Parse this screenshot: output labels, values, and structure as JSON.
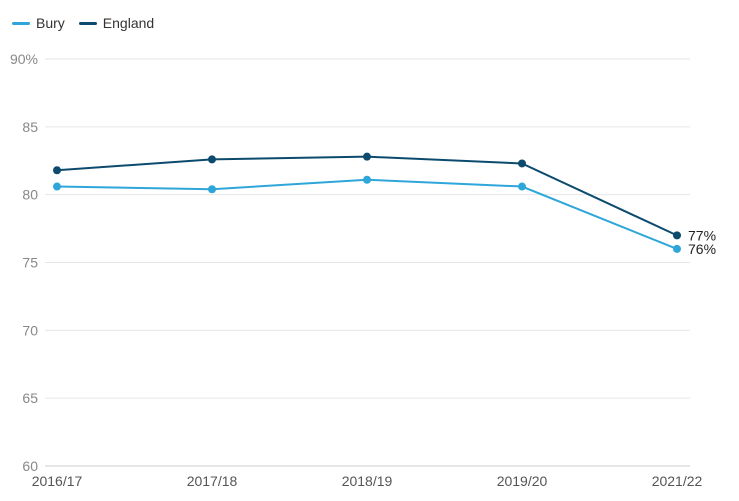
{
  "chart_data": {
    "type": "line",
    "categories": [
      "2016/17",
      "2017/18",
      "2018/19",
      "2019/20",
      "2021/22"
    ],
    "series": [
      {
        "name": "Bury",
        "values": [
          80.6,
          80.4,
          81.1,
          80.6,
          76
        ],
        "color": "#2ea6d9",
        "end_label": "76%"
      },
      {
        "name": "England",
        "values": [
          81.8,
          82.6,
          82.8,
          82.3,
          77
        ],
        "color": "#0c4a6e",
        "end_label": "77%"
      }
    ],
    "yticks": [
      "60",
      "65",
      "70",
      "75",
      "80",
      "85",
      "90%"
    ],
    "ylim": [
      60,
      90
    ],
    "grid": true,
    "legend_position": "top-left"
  }
}
